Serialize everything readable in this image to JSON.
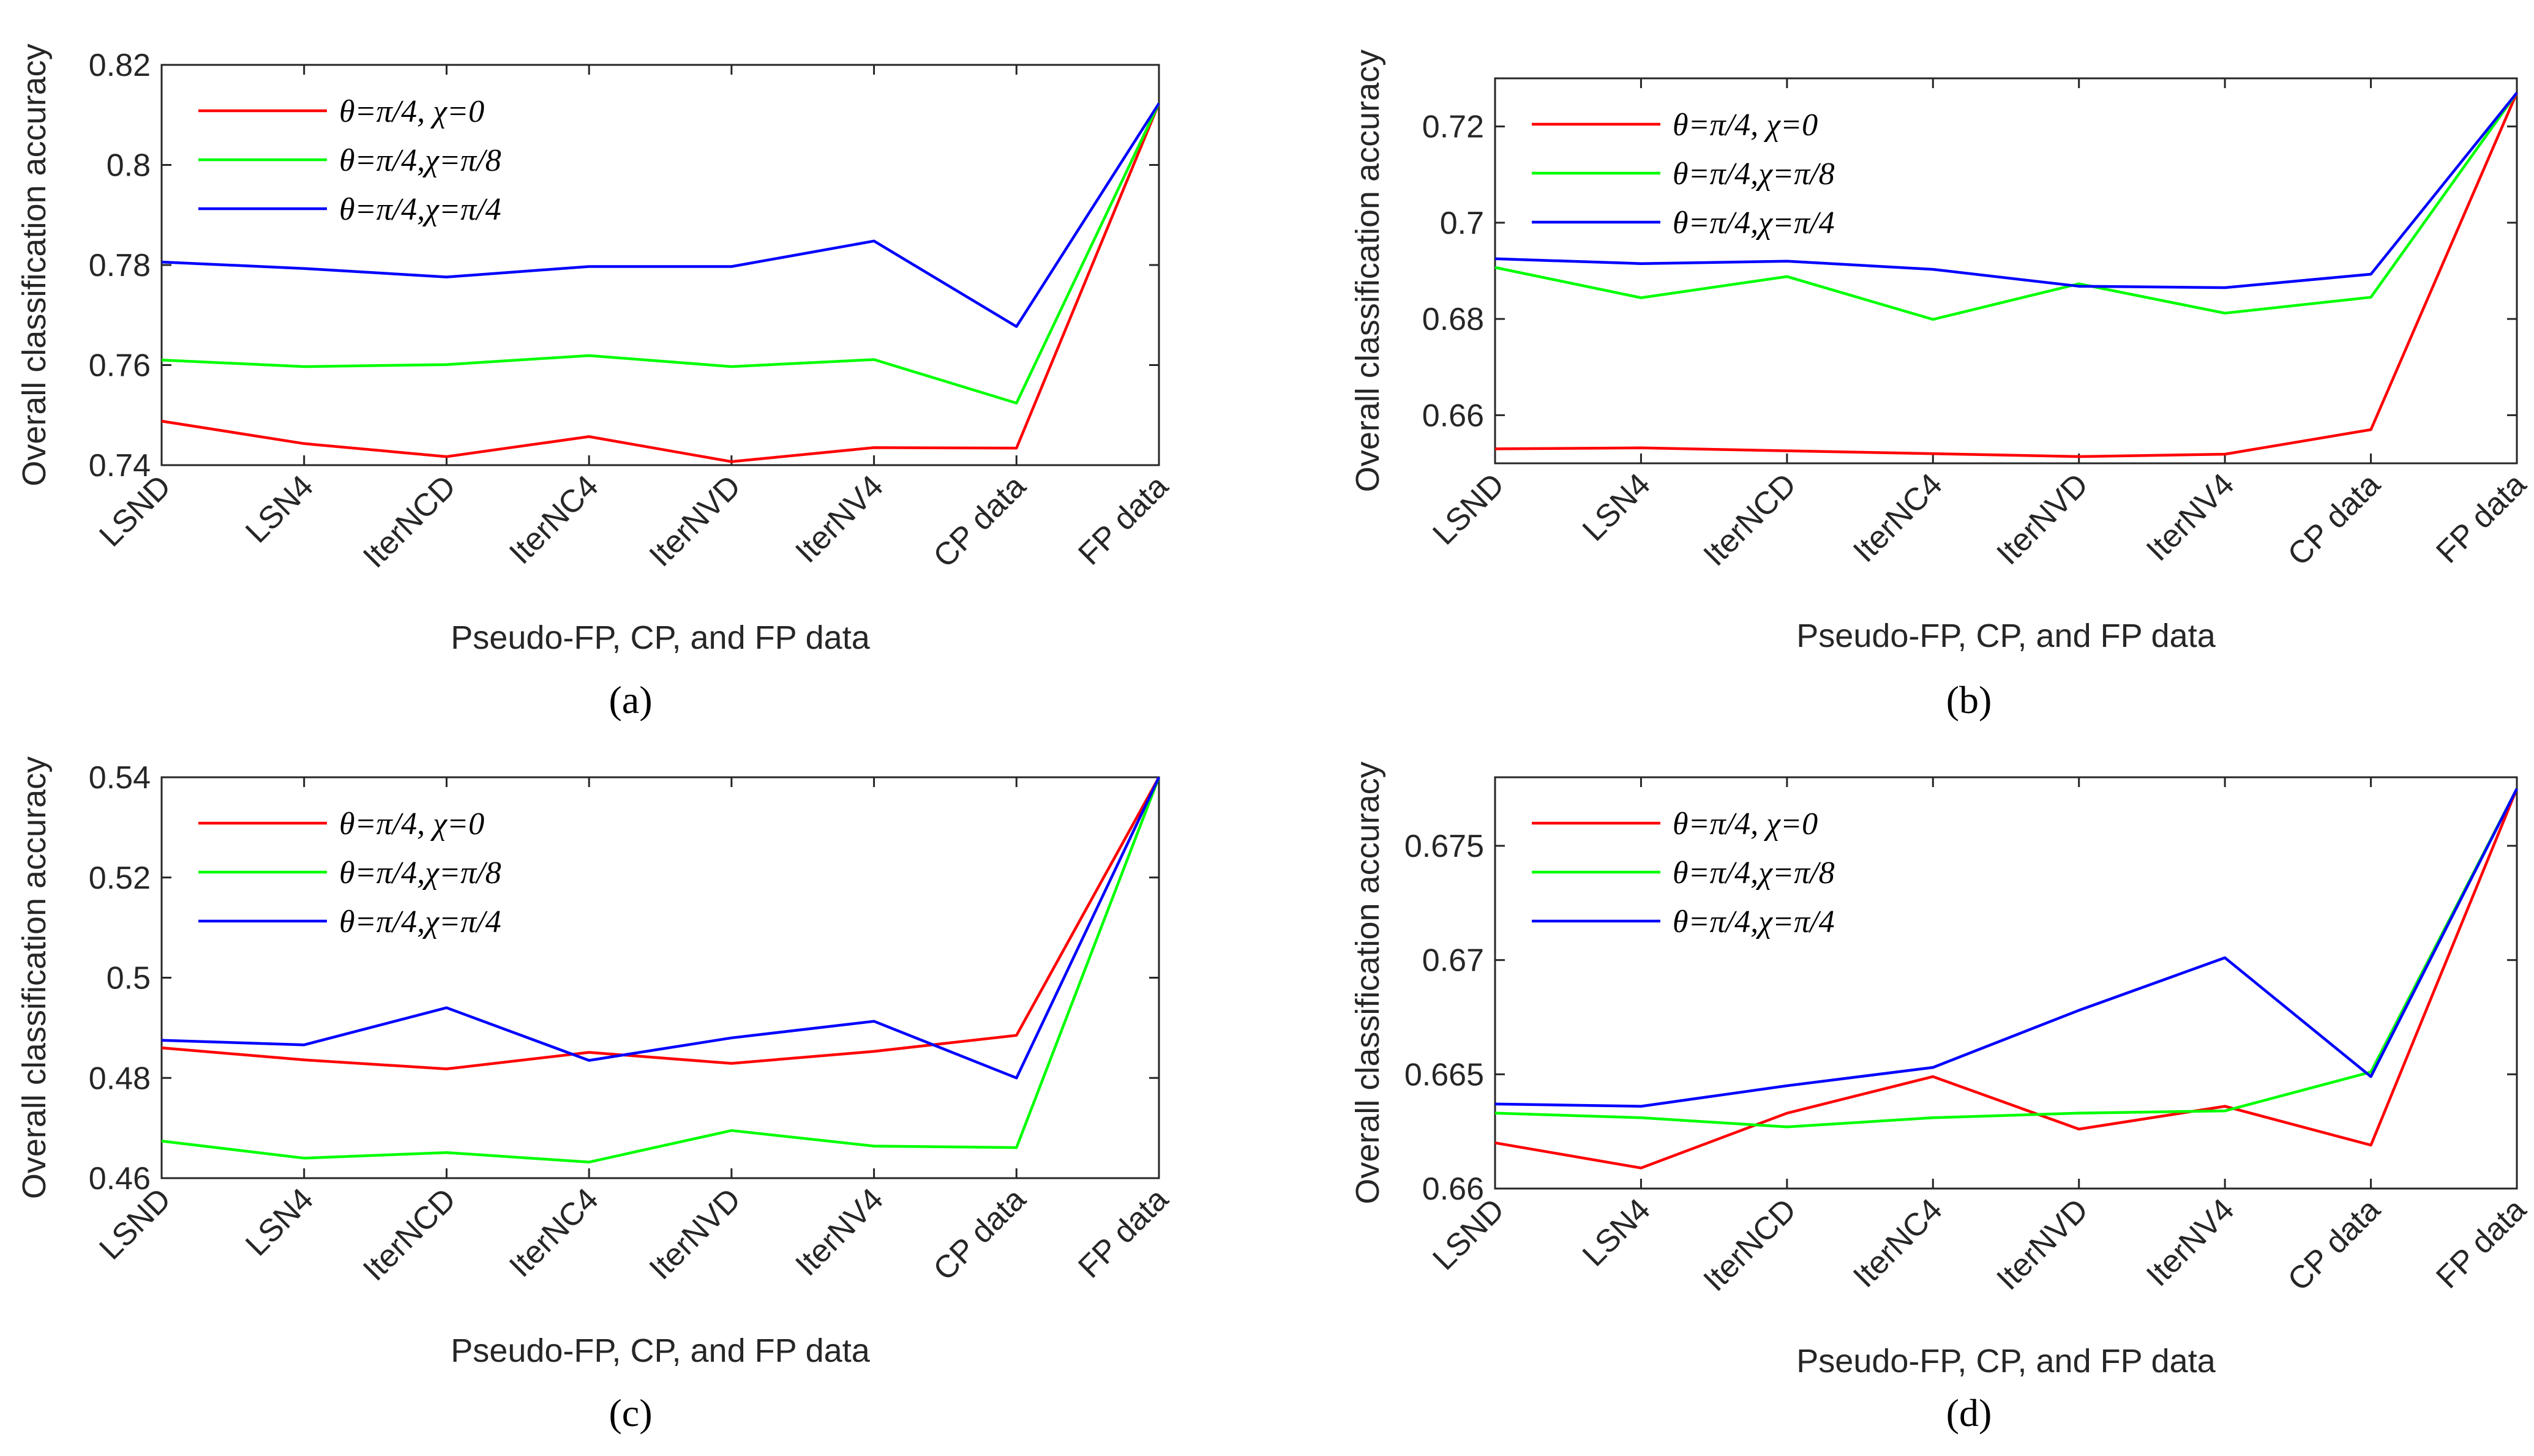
{
  "chart_data": [
    {
      "type": "line",
      "panel": "a",
      "categories": [
        "LSND",
        "LSN4",
        "IterNCD",
        "IterNC4",
        "IterNVD",
        "IterNV4",
        "CP data",
        "FP data"
      ],
      "xlabel": "Pseudo-FP, CP, and FP data",
      "ylabel": "Overall classification accuracy",
      "ylim": [
        0.74,
        0.82
      ],
      "yticks": [
        "0.74",
        "0.76",
        "0.78",
        "0.8",
        "0.82"
      ],
      "legend_position": "top-left",
      "series": [
        {
          "name": "θ=π/4, χ=0",
          "color": "#ff0000",
          "values": [
            0.7488,
            0.7443,
            0.7417,
            0.7457,
            0.7407,
            0.7435,
            0.7434,
            0.8123
          ]
        },
        {
          "name": "θ=π/4,χ=π/8",
          "color": "#00ff00",
          "values": [
            0.761,
            0.7597,
            0.7601,
            0.7619,
            0.7597,
            0.7611,
            0.7524,
            0.8123
          ]
        },
        {
          "name": "θ=π/4,χ=π/4",
          "color": "#0000ff",
          "values": [
            0.7806,
            0.7793,
            0.7776,
            0.7797,
            0.7797,
            0.7848,
            0.7677,
            0.8123
          ]
        }
      ]
    },
    {
      "type": "line",
      "panel": "b",
      "categories": [
        "LSND",
        "LSN4",
        "IterNCD",
        "IterNC4",
        "IterNVD",
        "IterNV4",
        "CP data",
        "FP data"
      ],
      "xlabel": "Pseudo-FP, CP, and FP data",
      "ylabel": "Overall classification accuracy",
      "ylim": [
        0.65,
        0.73
      ],
      "yticks": [
        "0.66",
        "0.68",
        "0.7",
        "0.72"
      ],
      "legend_position": "top-left",
      "series": [
        {
          "name": "θ=π/4, χ=0",
          "color": "#ff0000",
          "values": [
            0.653,
            0.6532,
            0.6526,
            0.652,
            0.6514,
            0.6519,
            0.657,
            0.727
          ]
        },
        {
          "name": "θ=π/4,χ=π/8",
          "color": "#00ff00",
          "values": [
            0.6907,
            0.6844,
            0.6888,
            0.6799,
            0.6873,
            0.6812,
            0.6845,
            0.727
          ]
        },
        {
          "name": "θ=π/4,χ=π/4",
          "color": "#0000ff",
          "values": [
            0.6925,
            0.6915,
            0.692,
            0.6903,
            0.6868,
            0.6865,
            0.6893,
            0.727
          ]
        }
      ]
    },
    {
      "type": "line",
      "panel": "c",
      "categories": [
        "LSND",
        "LSN4",
        "IterNCD",
        "IterNC4",
        "IterNVD",
        "IterNV4",
        "CP data",
        "FP data"
      ],
      "xlabel": "Pseudo-FP, CP, and FP data",
      "ylabel": "Overall classification accuracy",
      "ylim": [
        0.46,
        0.54
      ],
      "yticks": [
        "0.46",
        "0.48",
        "0.5",
        "0.52",
        "0.54"
      ],
      "legend_position": "top-left",
      "series": [
        {
          "name": "θ=π/4, χ=0",
          "color": "#ff0000",
          "values": [
            0.486,
            0.4836,
            0.4818,
            0.4851,
            0.4829,
            0.4853,
            0.4885,
            0.54
          ]
        },
        {
          "name": "θ=π/4,χ=π/8",
          "color": "#00ff00",
          "values": [
            0.4674,
            0.464,
            0.4651,
            0.4632,
            0.4695,
            0.4664,
            0.4661,
            0.54
          ]
        },
        {
          "name": "θ=π/4,χ=π/4",
          "color": "#0000ff",
          "values": [
            0.4875,
            0.4866,
            0.494,
            0.4835,
            0.488,
            0.4913,
            0.48,
            0.54
          ]
        }
      ]
    },
    {
      "type": "line",
      "panel": "d",
      "categories": [
        "LSND",
        "LSN4",
        "IterNCD",
        "IterNC4",
        "IterNVD",
        "IterNV4",
        "CP data",
        "FP data"
      ],
      "xlabel": "Pseudo-FP, CP, and FP data",
      "ylabel": "Overall classification accuracy",
      "ylim": [
        0.66,
        0.678
      ],
      "yticks": [
        "0.66",
        "0.665",
        "0.67",
        "0.675"
      ],
      "legend_position": "top-left",
      "series": [
        {
          "name": "θ=π/4, χ=0",
          "color": "#ff0000",
          "values": [
            0.662,
            0.6609,
            0.6633,
            0.6649,
            0.6626,
            0.6636,
            0.6619,
            0.6775
          ]
        },
        {
          "name": "θ=π/4,χ=π/8",
          "color": "#00ff00",
          "values": [
            0.6633,
            0.6631,
            0.6627,
            0.6631,
            0.6633,
            0.6634,
            0.6651,
            0.6775
          ]
        },
        {
          "name": "θ=π/4,χ=π/4",
          "color": "#0000ff",
          "values": [
            0.6637,
            0.6636,
            0.6645,
            0.6653,
            0.6678,
            0.6701,
            0.6649,
            0.6775
          ]
        }
      ]
    }
  ],
  "panel_labels": [
    "(a)",
    "(b)",
    "(c)",
    "(d)"
  ]
}
